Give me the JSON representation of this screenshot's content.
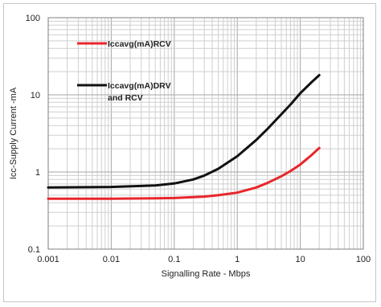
{
  "chart_data": {
    "type": "line",
    "title": "",
    "xlabel": "Signalling Rate - Mbps",
    "ylabel": "Icc-Supply Current -mA",
    "xscale": "log",
    "yscale": "log",
    "xlim": [
      0.001,
      100
    ],
    "ylim": [
      0.1,
      100
    ],
    "grid": true,
    "legend_position": "top-left",
    "x_tick_labels": [
      "0.001",
      "0.01",
      "0.1",
      "1",
      "10",
      "100"
    ],
    "y_tick_labels": [
      "100",
      "10",
      "1",
      "0.1"
    ],
    "series": [
      {
        "name": "Iccavg(mA)RCV",
        "color": "#e8262b",
        "x": [
          0.001,
          0.01,
          0.05,
          0.1,
          0.3,
          0.5,
          1,
          2,
          3,
          5,
          7,
          10,
          15,
          20
        ],
        "y": [
          0.45,
          0.45,
          0.455,
          0.46,
          0.48,
          0.5,
          0.54,
          0.63,
          0.72,
          0.88,
          1.03,
          1.25,
          1.65,
          2.05
        ]
      },
      {
        "name_lines": [
          "Iccavg(mA)DRV",
          "and RCV"
        ],
        "color": "#111111",
        "x": [
          0.001,
          0.01,
          0.05,
          0.1,
          0.2,
          0.3,
          0.5,
          1,
          2,
          3,
          5,
          7,
          10,
          15,
          20
        ],
        "y": [
          0.63,
          0.64,
          0.67,
          0.71,
          0.8,
          0.9,
          1.1,
          1.6,
          2.6,
          3.6,
          5.6,
          7.5,
          10.5,
          14.5,
          18
        ]
      }
    ]
  }
}
